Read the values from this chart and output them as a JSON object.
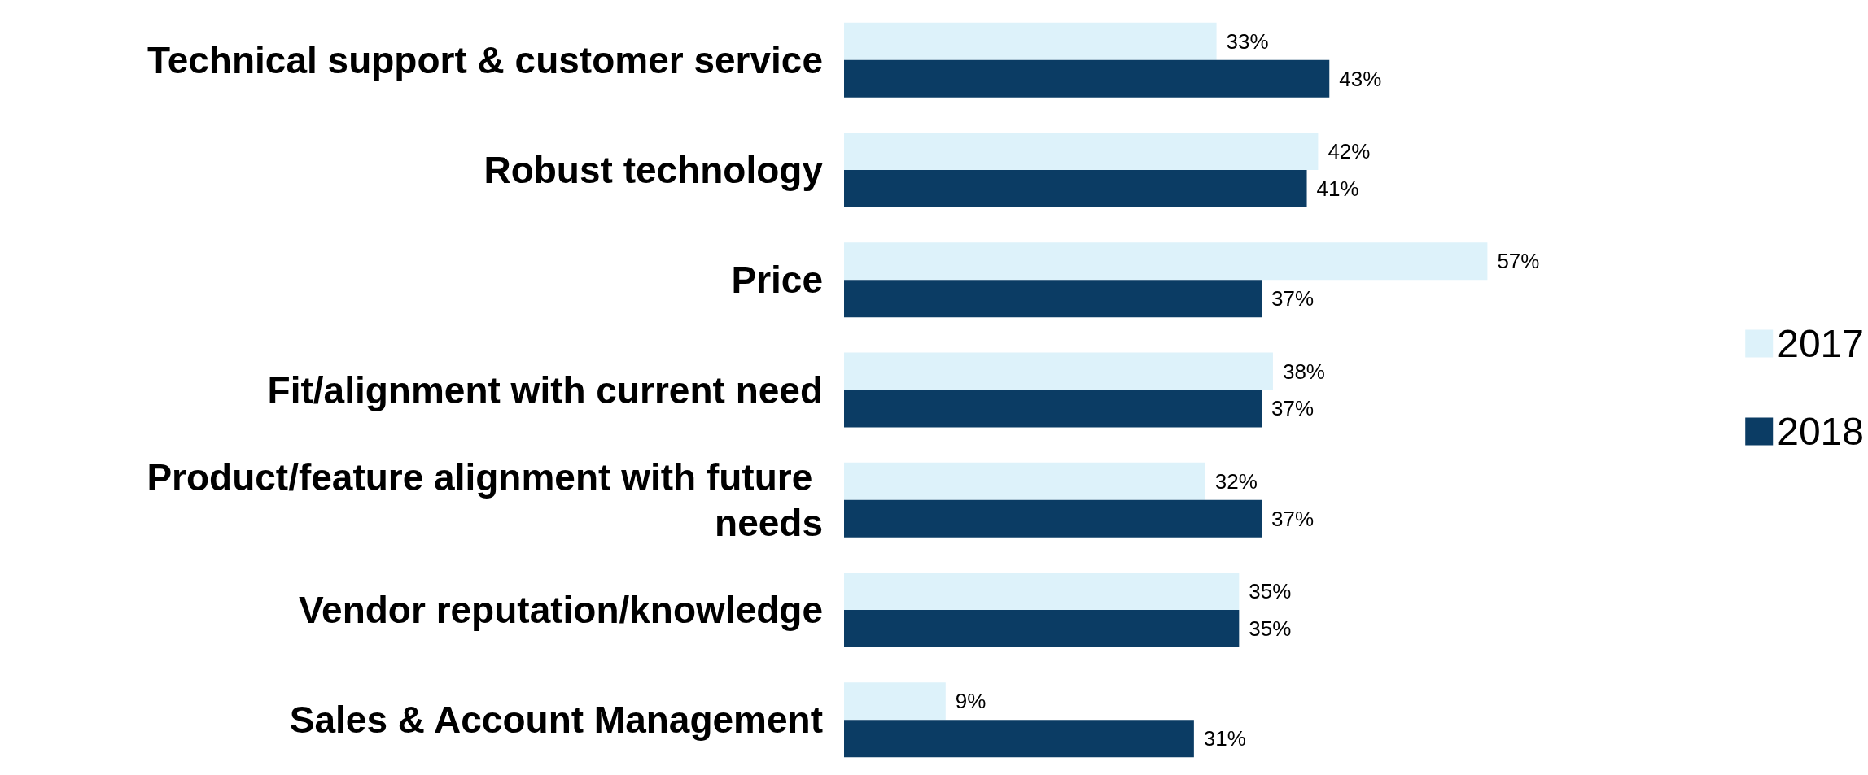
{
  "chart_data": {
    "type": "bar",
    "orientation": "horizontal",
    "categories": [
      "Technical support & customer service",
      "Robust technology",
      "Price",
      "Fit/alignment with current need",
      "Product/feature alignment with future needs",
      "Vendor reputation/knowledge",
      "Sales & Account Management"
    ],
    "series": [
      {
        "name": "2017",
        "color": "#ddf2fa",
        "values": [
          33,
          42,
          57,
          38,
          32,
          35,
          9
        ],
        "value_labels": [
          "33%",
          "42%",
          "57%",
          "38%",
          "32%",
          "35%",
          "9%"
        ]
      },
      {
        "name": "2018",
        "color": "#0b3c64",
        "values": [
          43,
          41,
          37,
          37,
          37,
          35,
          31
        ],
        "value_labels": [
          "43%",
          "41%",
          "37%",
          "37%",
          "37%",
          "35%",
          "31%"
        ]
      }
    ],
    "legend": "right"
  }
}
